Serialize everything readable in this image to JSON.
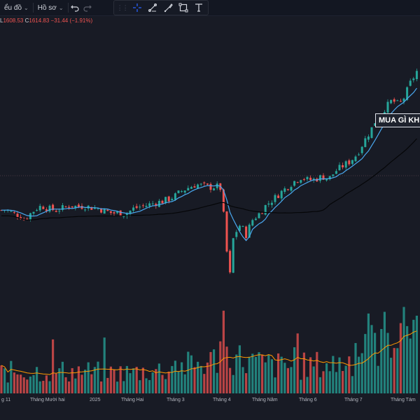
{
  "toolbar": {
    "chart_menu_label": "ểu đồ",
    "profile_menu_label": "Hồ sơ",
    "icons": [
      "undo-icon",
      "redo-icon",
      "crosshair-icon",
      "trend-line-icon",
      "brush-icon",
      "rectangle-icon",
      "text-icon"
    ]
  },
  "legend": {
    "low_key": "L",
    "low_value": "1608.53",
    "close_key": "C",
    "close_value": "1614.83",
    "change": "−31.44 (−1.91%)"
  },
  "annotation": {
    "text": "MUA GÌ KH"
  },
  "x_axis": {
    "labels": [
      "g 11",
      "Tháng Mười hai",
      "2025",
      "Tháng Hai",
      "Tháng 3",
      "Tháng 4",
      "Tháng Năm",
      "Tháng 6",
      "Tháng 7",
      "Tháng Tám"
    ]
  },
  "colors": {
    "background": "#181b25",
    "up_candle": "#26a69a",
    "down_candle": "#ef5350",
    "ma_short": "#4aa8f0",
    "ma_long": "#050608",
    "volume_ma": "#ff9800",
    "annotation_border": "#e0e3eb"
  },
  "chart_data": {
    "type": "candlestick",
    "last_low": 1608.53,
    "last_close": 1614.83,
    "price_path": [
      [
        0,
        1238
      ],
      [
        8,
        1239
      ],
      [
        18,
        1234
      ],
      [
        28,
        1231
      ],
      [
        34,
        1225
      ],
      [
        44,
        1234
      ],
      [
        54,
        1242
      ],
      [
        60,
        1244
      ],
      [
        70,
        1240
      ],
      [
        80,
        1238
      ],
      [
        90,
        1241
      ],
      [
        100,
        1245
      ],
      [
        110,
        1243
      ],
      [
        120,
        1244
      ],
      [
        130,
        1242
      ],
      [
        140,
        1241
      ],
      [
        150,
        1237
      ],
      [
        160,
        1234
      ],
      [
        170,
        1234
      ],
      [
        180,
        1233
      ],
      [
        190,
        1240
      ],
      [
        200,
        1243
      ],
      [
        210,
        1245
      ],
      [
        220,
        1248
      ],
      [
        230,
        1250
      ],
      [
        240,
        1253
      ],
      [
        250,
        1258
      ],
      [
        260,
        1265
      ],
      [
        270,
        1270
      ],
      [
        280,
        1274
      ],
      [
        290,
        1272
      ],
      [
        300,
        1270
      ],
      [
        310,
        1271
      ],
      [
        316,
        1268
      ],
      [
        320,
        1225
      ],
      [
        324,
        1180
      ],
      [
        328,
        1140
      ],
      [
        332,
        1195
      ],
      [
        336,
        1205
      ],
      [
        340,
        1214
      ],
      [
        345,
        1220
      ],
      [
        350,
        1200
      ],
      [
        355,
        1212
      ],
      [
        360,
        1224
      ],
      [
        370,
        1233
      ],
      [
        380,
        1245
      ],
      [
        390,
        1253
      ],
      [
        400,
        1262
      ],
      [
        410,
        1270
      ],
      [
        420,
        1278
      ],
      [
        430,
        1284
      ],
      [
        440,
        1280
      ],
      [
        450,
        1281
      ],
      [
        460,
        1285
      ],
      [
        470,
        1282
      ],
      [
        480,
        1293
      ],
      [
        490,
        1300
      ],
      [
        500,
        1306
      ],
      [
        510,
        1316
      ],
      [
        520,
        1334
      ],
      [
        530,
        1350
      ],
      [
        540,
        1370
      ],
      [
        550,
        1380
      ],
      [
        560,
        1391
      ],
      [
        570,
        1385
      ],
      [
        578,
        1396
      ],
      [
        585,
        1413
      ],
      [
        592,
        1425
      ],
      [
        600,
        1440
      ]
    ],
    "volume_profile": [
      [
        0,
        0.28
      ],
      [
        30,
        0.3
      ],
      [
        60,
        0.3
      ],
      [
        90,
        0.3
      ],
      [
        120,
        0.3
      ],
      [
        150,
        0.28
      ],
      [
        180,
        0.28
      ],
      [
        210,
        0.3
      ],
      [
        240,
        0.33
      ],
      [
        270,
        0.38
      ],
      [
        300,
        0.42
      ],
      [
        320,
        0.55
      ],
      [
        340,
        0.48
      ],
      [
        360,
        0.42
      ],
      [
        390,
        0.38
      ],
      [
        420,
        0.36
      ],
      [
        450,
        0.38
      ],
      [
        480,
        0.4
      ],
      [
        500,
        0.45
      ],
      [
        520,
        0.58
      ],
      [
        540,
        0.7
      ],
      [
        560,
        0.85
      ],
      [
        580,
        1.0
      ],
      [
        600,
        1.05
      ]
    ]
  }
}
